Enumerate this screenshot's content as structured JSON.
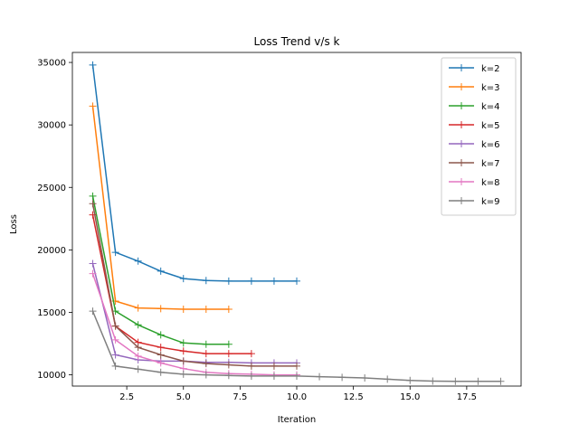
{
  "chart_data": {
    "type": "line",
    "title": "Loss Trend v/s k",
    "xlabel": "Iteration",
    "ylabel": "Loss",
    "xlim": [
      0.1,
      19.9
    ],
    "ylim": [
      9100,
      35800
    ],
    "xticks": [
      2.5,
      5.0,
      7.5,
      10.0,
      12.5,
      15.0,
      17.5
    ],
    "xtick_labels": [
      "2.5",
      "5.0",
      "7.5",
      "10.0",
      "12.5",
      "15.0",
      "17.5"
    ],
    "yticks": [
      10000,
      15000,
      20000,
      25000,
      30000,
      35000
    ],
    "ytick_labels": [
      "10000",
      "15000",
      "20000",
      "25000",
      "30000",
      "35000"
    ],
    "grid": false,
    "legend_position": "top-right",
    "series": [
      {
        "name": "k=2",
        "color": "#1f77b4",
        "x": [
          1,
          2,
          3,
          4,
          5,
          6,
          7,
          8,
          9,
          10
        ],
        "values": [
          34800,
          19800,
          19100,
          18300,
          17700,
          17550,
          17500,
          17500,
          17500,
          17500
        ]
      },
      {
        "name": "k=3",
        "color": "#ff7f0e",
        "x": [
          1,
          2,
          3,
          4,
          5,
          6,
          7
        ],
        "values": [
          31500,
          15900,
          15350,
          15300,
          15250,
          15250,
          15250
        ]
      },
      {
        "name": "k=4",
        "color": "#2ca02c",
        "x": [
          1,
          2,
          3,
          4,
          5,
          6,
          7
        ],
        "values": [
          24300,
          15100,
          14000,
          13200,
          12550,
          12450,
          12450
        ]
      },
      {
        "name": "k=5",
        "color": "#d62728",
        "x": [
          1,
          2,
          3,
          4,
          5,
          6,
          7,
          8
        ],
        "values": [
          22800,
          13900,
          12600,
          12200,
          11900,
          11700,
          11700,
          11700
        ]
      },
      {
        "name": "k=6",
        "color": "#9467bd",
        "x": [
          1,
          2,
          3,
          4,
          5,
          6,
          7,
          8,
          9,
          10
        ],
        "values": [
          18900,
          11600,
          11200,
          11100,
          11100,
          11000,
          11000,
          10950,
          10950,
          10950
        ]
      },
      {
        "name": "k=7",
        "color": "#8c564b",
        "x": [
          1,
          2,
          3,
          4,
          5,
          6,
          7,
          8,
          9,
          10
        ],
        "values": [
          23700,
          13900,
          12200,
          11600,
          11100,
          10900,
          10800,
          10700,
          10700,
          10700
        ]
      },
      {
        "name": "k=8",
        "color": "#e377c2",
        "x": [
          1,
          2,
          3,
          4,
          5,
          6,
          7,
          8,
          9,
          10
        ],
        "values": [
          18100,
          12800,
          11500,
          10950,
          10500,
          10200,
          10100,
          10050,
          10000,
          10000
        ]
      },
      {
        "name": "k=9",
        "color": "#7f7f7f",
        "x": [
          1,
          2,
          3,
          4,
          5,
          6,
          7,
          8,
          9,
          10,
          11,
          12,
          13,
          14,
          15,
          16,
          17,
          18,
          19
        ],
        "values": [
          15100,
          10700,
          10450,
          10200,
          10050,
          10000,
          9950,
          9900,
          9900,
          9900,
          9850,
          9800,
          9750,
          9650,
          9550,
          9500,
          9480,
          9480,
          9480
        ]
      }
    ]
  }
}
